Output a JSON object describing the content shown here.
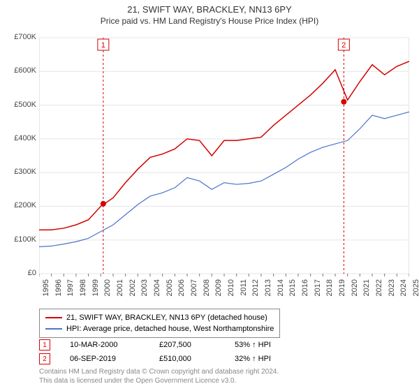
{
  "title": "21, SWIFT WAY, BRACKLEY, NN13 6PY",
  "subtitle": "Price paid vs. HM Land Registry's House Price Index (HPI)",
  "chart": {
    "type": "line",
    "background_color": "#ffffff",
    "plot_border_color": "#cccccc",
    "grid_color": "#e5e5e5",
    "x": {
      "min": 1995,
      "max": 2025,
      "step": 1,
      "labels": [
        "1995",
        "1996",
        "1997",
        "1998",
        "1999",
        "2000",
        "2001",
        "2002",
        "2003",
        "2004",
        "2005",
        "2006",
        "2007",
        "2008",
        "2009",
        "2010",
        "2011",
        "2012",
        "2013",
        "2014",
        "2015",
        "2016",
        "2017",
        "2018",
        "2019",
        "2020",
        "2021",
        "2022",
        "2023",
        "2024",
        "2025"
      ]
    },
    "y": {
      "min": 0,
      "max": 700000,
      "step": 100000,
      "labels": [
        "£0",
        "£100K",
        "£200K",
        "£300K",
        "£400K",
        "£500K",
        "£600K",
        "£700K"
      ]
    },
    "series": [
      {
        "name": "property",
        "label": "21, SWIFT WAY, BRACKLEY, NN13 6PY (detached house)",
        "color": "#d40000",
        "line_width": 1.5,
        "data": [
          [
            1995,
            130000
          ],
          [
            1996,
            130000
          ],
          [
            1997,
            135000
          ],
          [
            1998,
            145000
          ],
          [
            1999,
            160000
          ],
          [
            2000,
            200000
          ],
          [
            2001,
            225000
          ],
          [
            2002,
            270000
          ],
          [
            2003,
            310000
          ],
          [
            2004,
            345000
          ],
          [
            2005,
            355000
          ],
          [
            2006,
            370000
          ],
          [
            2007,
            400000
          ],
          [
            2008,
            395000
          ],
          [
            2009,
            350000
          ],
          [
            2010,
            395000
          ],
          [
            2011,
            395000
          ],
          [
            2012,
            400000
          ],
          [
            2013,
            405000
          ],
          [
            2014,
            440000
          ],
          [
            2015,
            470000
          ],
          [
            2016,
            500000
          ],
          [
            2017,
            530000
          ],
          [
            2018,
            565000
          ],
          [
            2019,
            605000
          ],
          [
            2020,
            515000
          ],
          [
            2021,
            570000
          ],
          [
            2022,
            620000
          ],
          [
            2023,
            590000
          ],
          [
            2024,
            615000
          ],
          [
            2025,
            630000
          ]
        ]
      },
      {
        "name": "hpi",
        "label": "HPI: Average price, detached house, West Northamptonshire",
        "color": "#4a74c9",
        "line_width": 1.2,
        "data": [
          [
            1995,
            80000
          ],
          [
            1996,
            82000
          ],
          [
            1997,
            88000
          ],
          [
            1998,
            95000
          ],
          [
            1999,
            105000
          ],
          [
            2000,
            125000
          ],
          [
            2001,
            145000
          ],
          [
            2002,
            175000
          ],
          [
            2003,
            205000
          ],
          [
            2004,
            230000
          ],
          [
            2005,
            240000
          ],
          [
            2006,
            255000
          ],
          [
            2007,
            285000
          ],
          [
            2008,
            275000
          ],
          [
            2009,
            250000
          ],
          [
            2010,
            270000
          ],
          [
            2011,
            265000
          ],
          [
            2012,
            268000
          ],
          [
            2013,
            275000
          ],
          [
            2014,
            295000
          ],
          [
            2015,
            315000
          ],
          [
            2016,
            340000
          ],
          [
            2017,
            360000
          ],
          [
            2018,
            375000
          ],
          [
            2019,
            385000
          ],
          [
            2020,
            395000
          ],
          [
            2021,
            430000
          ],
          [
            2022,
            470000
          ],
          [
            2023,
            460000
          ],
          [
            2024,
            470000
          ],
          [
            2025,
            480000
          ]
        ]
      }
    ],
    "event_markers": [
      {
        "id": "1",
        "x": 2000.2,
        "y": 207500,
        "line_color": "#d40000",
        "badge_color": "#d40000"
      },
      {
        "id": "2",
        "x": 2019.7,
        "y": 510000,
        "line_color": "#d40000",
        "badge_color": "#d40000"
      }
    ]
  },
  "events": [
    {
      "id": "1",
      "date": "10-MAR-2000",
      "price": "£207,500",
      "diff": "53% ↑ HPI"
    },
    {
      "id": "2",
      "date": "06-SEP-2019",
      "price": "£510,000",
      "diff": "32% ↑ HPI"
    }
  ],
  "footer": {
    "line1": "Contains HM Land Registry data © Crown copyright and database right 2024.",
    "line2": "This data is licensed under the Open Government Licence v3.0."
  }
}
